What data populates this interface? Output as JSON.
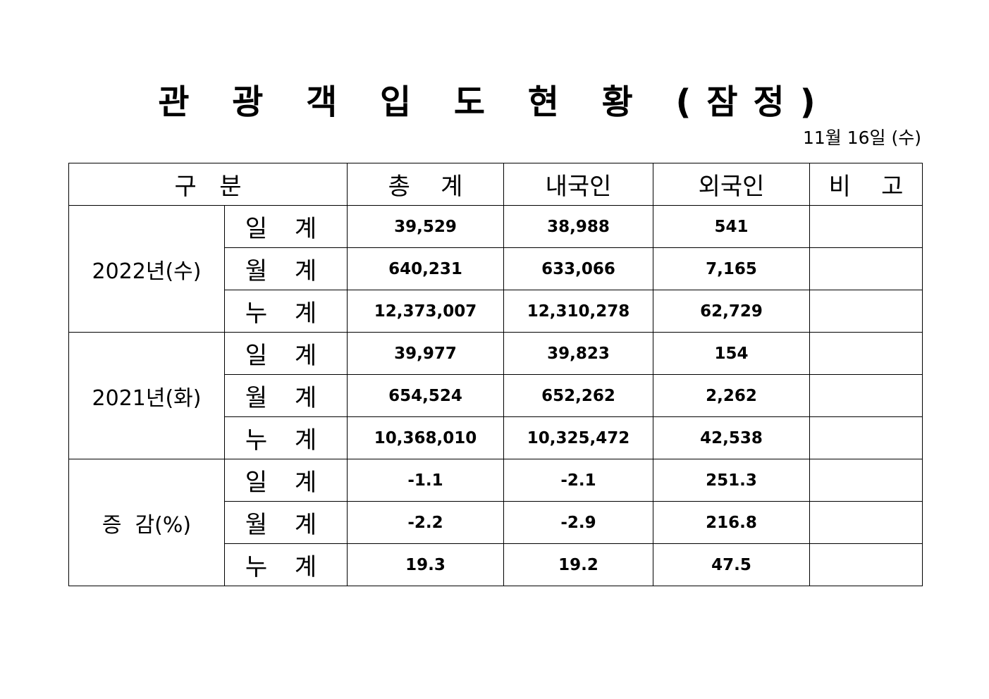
{
  "title": "관 광 객 입 도 현 황 (잠정)",
  "date": "11월  16일  (수)",
  "headers": [
    "구   분",
    "총    계",
    "내국인",
    "외국인",
    "비    고"
  ],
  "groups": [
    {
      "label": "2022년(수)",
      "rows": [
        {
          "sub": "일 계",
          "total": "39,529",
          "domestic": "38,988",
          "foreign": "541",
          "note": ""
        },
        {
          "sub": "월 계",
          "total": "640,231",
          "domestic": "633,066",
          "foreign": "7,165",
          "note": ""
        },
        {
          "sub": "누 계",
          "total": "12,373,007",
          "domestic": "12,310,278",
          "foreign": "62,729",
          "note": ""
        }
      ]
    },
    {
      "label": "2021년(화)",
      "rows": [
        {
          "sub": "일 계",
          "total": "39,977",
          "domestic": "39,823",
          "foreign": "154",
          "note": ""
        },
        {
          "sub": "월 계",
          "total": "654,524",
          "domestic": "652,262",
          "foreign": "2,262",
          "note": ""
        },
        {
          "sub": "누 계",
          "total": "10,368,010",
          "domestic": "10,325,472",
          "foreign": "42,538",
          "note": ""
        }
      ]
    },
    {
      "label": "증  감(%)",
      "rows": [
        {
          "sub": "일 계",
          "total": "-1.1",
          "domestic": "-2.1",
          "foreign": "251.3",
          "note": ""
        },
        {
          "sub": "월 계",
          "total": "-2.2",
          "domestic": "-2.9",
          "foreign": "216.8",
          "note": ""
        },
        {
          "sub": "누 계",
          "total": "19.3",
          "domestic": "19.2",
          "foreign": "47.5",
          "note": ""
        }
      ]
    }
  ]
}
